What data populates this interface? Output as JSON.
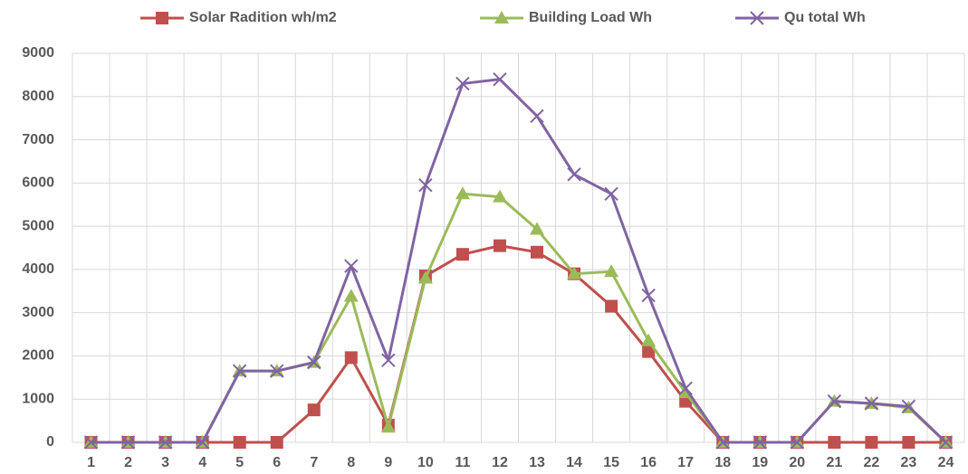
{
  "chart_data": {
    "type": "line",
    "categories": [
      "1",
      "2",
      "3",
      "4",
      "5",
      "6",
      "7",
      "8",
      "9",
      "10",
      "11",
      "12",
      "13",
      "14",
      "15",
      "16",
      "17",
      "18",
      "19",
      "20",
      "21",
      "22",
      "23",
      "24"
    ],
    "series": [
      {
        "name": "Solar Radition wh/m2",
        "color": "#c0504d",
        "marker": "square",
        "values": [
          0,
          0,
          0,
          0,
          0,
          0,
          750,
          1960,
          400,
          3850,
          4350,
          4550,
          4400,
          3900,
          3150,
          2100,
          950,
          0,
          0,
          0,
          0,
          0,
          0,
          0
        ]
      },
      {
        "name": "Building Load Wh",
        "color": "#9bbb59",
        "marker": "triangle",
        "values": [
          0,
          0,
          0,
          0,
          1650,
          1650,
          1850,
          3380,
          350,
          3800,
          5750,
          5680,
          4930,
          3900,
          3950,
          2350,
          1150,
          0,
          0,
          0,
          950,
          900,
          800,
          0
        ]
      },
      {
        "name": "Qu total Wh",
        "color": "#8064a2",
        "marker": "x",
        "values": [
          0,
          0,
          0,
          0,
          1650,
          1650,
          1850,
          4080,
          1900,
          5950,
          8300,
          8400,
          7550,
          6200,
          5750,
          3400,
          1250,
          0,
          0,
          0,
          950,
          900,
          830,
          0
        ]
      }
    ],
    "ylim": [
      0,
      9000
    ],
    "yticks": [
      0,
      1000,
      2000,
      3000,
      4000,
      5000,
      6000,
      7000,
      8000,
      9000
    ],
    "grid": true,
    "legend": "top"
  }
}
